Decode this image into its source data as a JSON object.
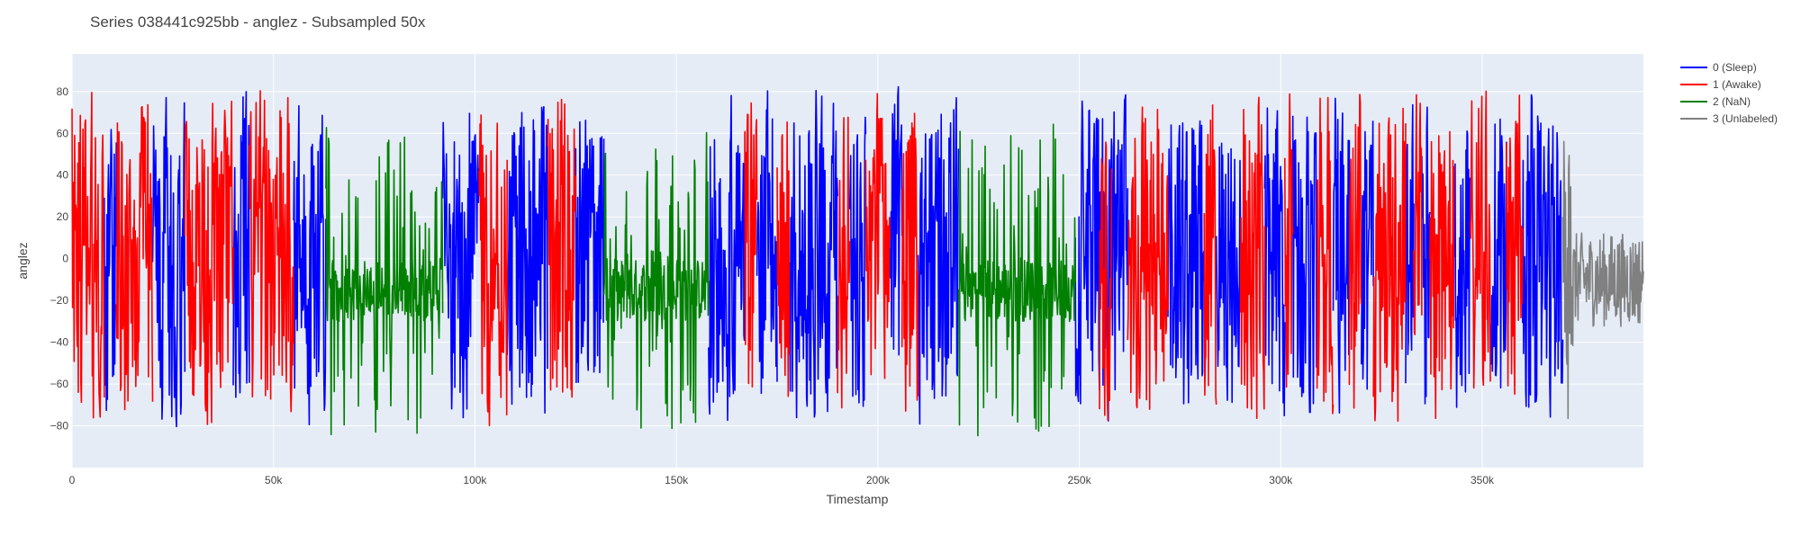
{
  "chart_data": {
    "type": "line",
    "title": "Series 038441c925bb - anglez - Subsampled 50x",
    "xlabel": "Timestamp",
    "ylabel": "anglez",
    "xlim": [
      0,
      390000
    ],
    "ylim": [
      -100,
      98
    ],
    "x_ticks": [
      {
        "value": 0,
        "label": "0"
      },
      {
        "value": 50000,
        "label": "50k"
      },
      {
        "value": 100000,
        "label": "100k"
      },
      {
        "value": 150000,
        "label": "150k"
      },
      {
        "value": 200000,
        "label": "200k"
      },
      {
        "value": 250000,
        "label": "250k"
      },
      {
        "value": 300000,
        "label": "300k"
      },
      {
        "value": 350000,
        "label": "350k"
      }
    ],
    "y_ticks": [
      {
        "value": 80,
        "label": "80"
      },
      {
        "value": 60,
        "label": "60"
      },
      {
        "value": 40,
        "label": "40"
      },
      {
        "value": 20,
        "label": "20"
      },
      {
        "value": 0,
        "label": "0"
      },
      {
        "value": -20,
        "label": "−20"
      },
      {
        "value": -40,
        "label": "−40"
      },
      {
        "value": -60,
        "label": "−60"
      },
      {
        "value": -80,
        "label": "−80"
      }
    ],
    "grid": true,
    "legend_position": "top-right",
    "series": [
      {
        "name": "0 (Sleep)",
        "color": "#0000ff",
        "segments": [
          [
            8000,
            11000
          ],
          [
            20000,
            28000
          ],
          [
            40000,
            44000
          ],
          [
            55000,
            63000
          ],
          [
            92000,
            101000
          ],
          [
            108000,
            118000
          ],
          [
            125000,
            132000
          ],
          [
            158000,
            167000
          ],
          [
            170000,
            175000
          ],
          [
            178000,
            190000
          ],
          [
            193000,
            197000
          ],
          [
            203000,
            206000
          ],
          [
            210000,
            220000
          ],
          [
            249000,
            262000
          ],
          [
            272000,
            281000
          ],
          [
            284000,
            290000
          ],
          [
            296000,
            301000
          ],
          [
            303000,
            309000
          ],
          [
            313000,
            317000
          ],
          [
            320000,
            323000
          ],
          [
            331000,
            333000
          ],
          [
            335000,
            337000
          ],
          [
            343000,
            347000
          ],
          [
            352000,
            356000
          ],
          [
            360000,
            370000
          ]
        ]
      },
      {
        "name": "1 (Awake)",
        "color": "#ff0000",
        "segments": [
          [
            0,
            8000
          ],
          [
            11000,
            20000
          ],
          [
            28000,
            40000
          ],
          [
            44000,
            55000
          ],
          [
            101000,
            108000
          ],
          [
            118000,
            125000
          ],
          [
            167000,
            170000
          ],
          [
            175000,
            178000
          ],
          [
            190000,
            193000
          ],
          [
            197000,
            203000
          ],
          [
            206000,
            210000
          ],
          [
            255000,
            258000
          ],
          [
            262000,
            272000
          ],
          [
            281000,
            284000
          ],
          [
            290000,
            296000
          ],
          [
            301000,
            303000
          ],
          [
            309000,
            313000
          ],
          [
            317000,
            320000
          ],
          [
            323000,
            331000
          ],
          [
            333000,
            335000
          ],
          [
            337000,
            343000
          ],
          [
            347000,
            352000
          ],
          [
            356000,
            360000
          ]
        ]
      },
      {
        "name": "2 (NaN)",
        "color": "#008000",
        "segments": [
          [
            63000,
            92000
          ],
          [
            132000,
            158000
          ],
          [
            220000,
            249000
          ]
        ]
      },
      {
        "name": "3 (Unlabeled)",
        "color": "#808080",
        "segments": [
          [
            370000,
            390000
          ]
        ]
      }
    ]
  }
}
